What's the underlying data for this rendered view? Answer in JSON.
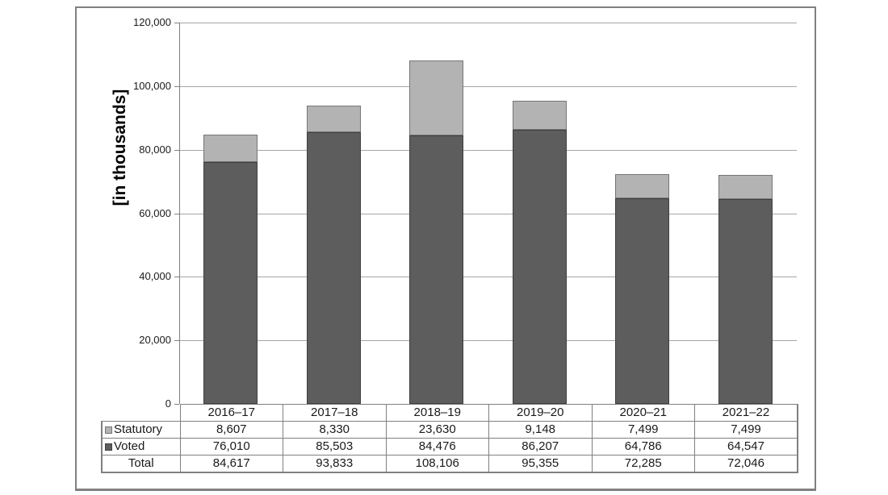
{
  "panel": {
    "background": "#ffffff",
    "border_color": "#808080"
  },
  "chart_data": {
    "type": "bar",
    "stacked": true,
    "title": "",
    "ylabel": "[in thousands]",
    "xlabel": "",
    "categories": [
      "2016–17",
      "2017–18",
      "2018–19",
      "2019–20",
      "2020–21",
      "2021–22"
    ],
    "series": [
      {
        "name": "Statutory",
        "color": "#b3b3b3",
        "border_color": "#767676",
        "values": [
          8607,
          8330,
          23630,
          9148,
          7499,
          7499
        ]
      },
      {
        "name": "Voted",
        "color": "#5d5d5d",
        "border_color": "#3f3f3f",
        "values": [
          76010,
          85503,
          84476,
          86207,
          64786,
          64547
        ]
      }
    ],
    "totals": {
      "label": "Total",
      "values": [
        84617,
        93833,
        108106,
        95355,
        72285,
        72046
      ]
    },
    "ylim": [
      0,
      120000
    ],
    "ytick_step": 20000,
    "ytick_labels": [
      "0",
      "20,000",
      "40,000",
      "60,000",
      "80,000",
      "100,000",
      "120,000"
    ],
    "grid": true,
    "gridline_color": "#a6a6a6",
    "axis_color": "#808080",
    "legend_position": "data-table",
    "number_format": "#,##0"
  }
}
